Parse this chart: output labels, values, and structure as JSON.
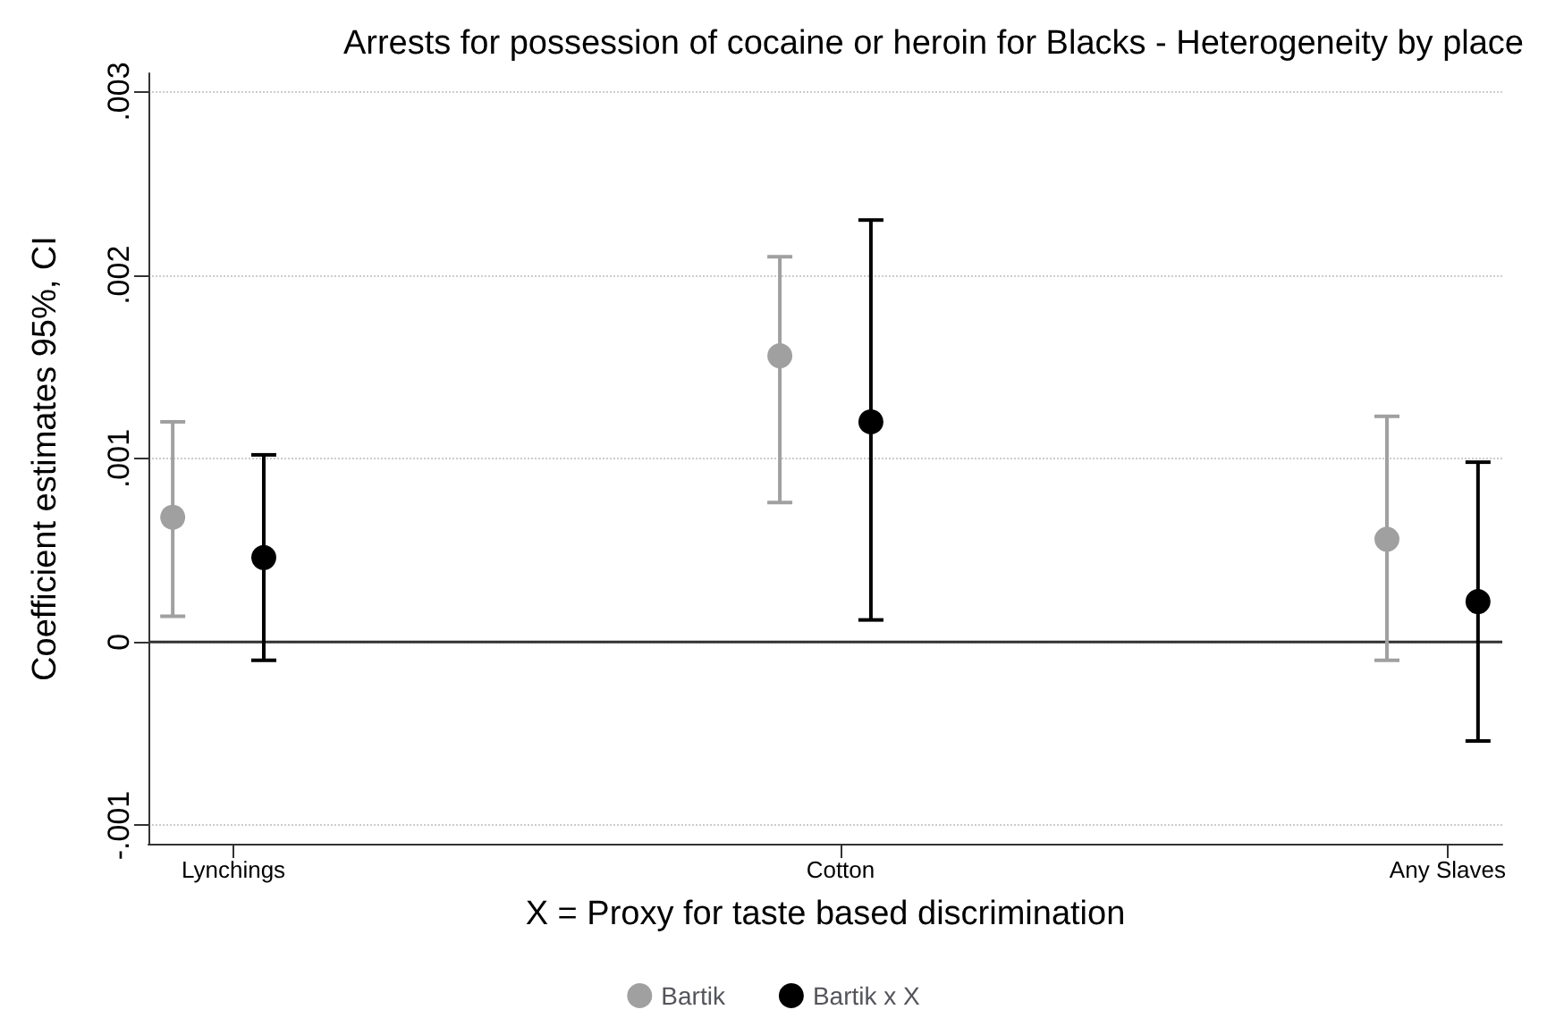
{
  "chart_data": {
    "type": "scatter",
    "title": "Arrests for possession of cocaine or heroin for Blacks - Heterogeneity by place",
    "xlabel": "X = Proxy for taste based discrimination",
    "ylabel": "Coefficient estimates 95%, CI",
    "categories": [
      "Lynchings",
      "Cotton",
      "Any Slaves"
    ],
    "series": [
      {
        "name": "Bartik",
        "color": "#a0a0a0",
        "values": [
          0.00068,
          0.00156,
          0.00056
        ],
        "errors": [
          [
            0.00014,
            0.0012
          ],
          [
            0.00076,
            0.0021
          ],
          [
            -0.0001,
            0.00123
          ]
        ]
      },
      {
        "name": "Bartik x X",
        "color": "#000000",
        "values": [
          0.00046,
          0.0012,
          0.00022
        ],
        "errors": [
          [
            -0.0001,
            0.00102
          ],
          [
            0.00012,
            0.0023
          ],
          [
            -0.00054,
            0.00098
          ]
        ]
      }
    ],
    "ylim": [
      -0.0011,
      0.0031
    ],
    "yticks": [
      {
        "value": -0.001,
        "label": "-.001"
      },
      {
        "value": 0,
        "label": "0"
      },
      {
        "value": 0.001,
        "label": ".001"
      },
      {
        "value": 0.002,
        "label": ".002"
      },
      {
        "value": 0.003,
        "label": ".003"
      }
    ],
    "ref_lines": [
      {
        "axis": "y",
        "value": 0,
        "color": "#333333",
        "line_style": "solid"
      }
    ],
    "grid": "y",
    "legend": "bottom",
    "marker": "circle"
  }
}
